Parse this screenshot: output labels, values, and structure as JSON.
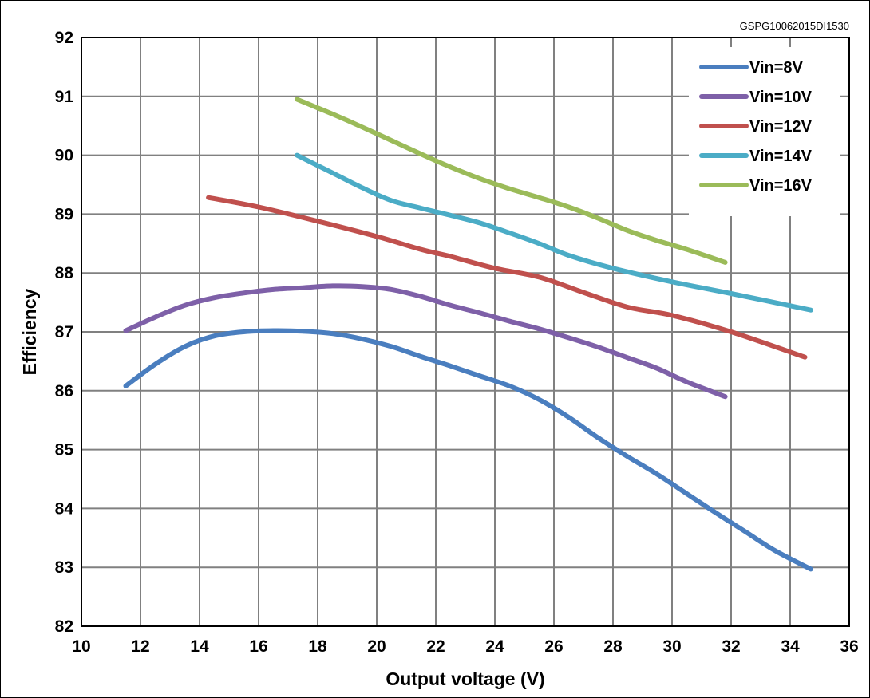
{
  "image_id": "GSPG10062015DI1530",
  "chart_data": {
    "type": "line",
    "title": "",
    "xlabel": "Output voltage (V)",
    "ylabel": "Efficiency",
    "xlim": [
      10,
      36
    ],
    "ylim": [
      82,
      92
    ],
    "xticks": [
      10,
      12,
      14,
      16,
      18,
      20,
      22,
      24,
      26,
      28,
      30,
      32,
      34,
      36
    ],
    "yticks": [
      82,
      83,
      84,
      85,
      86,
      87,
      88,
      89,
      90,
      91,
      92
    ],
    "grid": true,
    "legend_position": "top-right",
    "series": [
      {
        "name": "Vin=8V",
        "color": "#4a7ebf",
        "x": [
          11.5,
          12.5,
          13.5,
          14.5,
          15.5,
          16.5,
          17.5,
          18.5,
          19.5,
          20.5,
          21.5,
          22.5,
          23.5,
          24.5,
          25.5,
          26.5,
          27.5,
          28.5,
          29.5,
          30.5,
          31.5,
          32.5,
          33.5,
          34.7
        ],
        "y": [
          86.08,
          86.45,
          86.75,
          86.93,
          87.0,
          87.02,
          87.01,
          86.97,
          86.88,
          86.75,
          86.58,
          86.42,
          86.25,
          86.08,
          85.85,
          85.55,
          85.2,
          84.88,
          84.58,
          84.25,
          83.92,
          83.6,
          83.28,
          82.97
        ]
      },
      {
        "name": "Vin=10V",
        "color": "#7e60a8",
        "x": [
          11.5,
          12.5,
          13.5,
          14.5,
          15.5,
          16.5,
          17.5,
          18.5,
          19.5,
          20.5,
          21.5,
          22.5,
          23.5,
          24.5,
          25.5,
          26.5,
          27.5,
          28.5,
          29.5,
          30.5,
          31.8
        ],
        "y": [
          87.02,
          87.25,
          87.45,
          87.58,
          87.66,
          87.72,
          87.75,
          87.78,
          87.77,
          87.72,
          87.6,
          87.45,
          87.32,
          87.18,
          87.05,
          86.9,
          86.74,
          86.56,
          86.38,
          86.15,
          85.9
        ]
      },
      {
        "name": "Vin=12V",
        "color": "#c0504d",
        "x": [
          14.3,
          16.0,
          18.0,
          20.0,
          21.5,
          22.5,
          24.0,
          25.5,
          27.0,
          28.5,
          30.0,
          32.0,
          34.5
        ],
        "y": [
          89.28,
          89.12,
          88.88,
          88.62,
          88.4,
          88.28,
          88.08,
          87.93,
          87.67,
          87.42,
          87.28,
          87.0,
          86.57
        ]
      },
      {
        "name": "Vin=14V",
        "color": "#4bacc6",
        "x": [
          17.3,
          18.5,
          19.5,
          20.5,
          21.5,
          22.5,
          23.5,
          24.5,
          25.5,
          26.5,
          28.0,
          30.0,
          32.0,
          34.7
        ],
        "y": [
          90.0,
          89.7,
          89.45,
          89.23,
          89.1,
          88.98,
          88.85,
          88.68,
          88.5,
          88.3,
          88.08,
          87.85,
          87.65,
          87.37
        ]
      },
      {
        "name": "Vin=16V",
        "color": "#9bbb59",
        "x": [
          17.3,
          18.5,
          19.5,
          20.5,
          21.5,
          22.5,
          23.5,
          24.5,
          25.5,
          26.5,
          27.5,
          28.5,
          29.5,
          30.5,
          31.8
        ],
        "y": [
          90.95,
          90.7,
          90.48,
          90.25,
          90.02,
          89.8,
          89.6,
          89.43,
          89.28,
          89.12,
          88.93,
          88.72,
          88.55,
          88.4,
          88.18
        ]
      }
    ]
  }
}
